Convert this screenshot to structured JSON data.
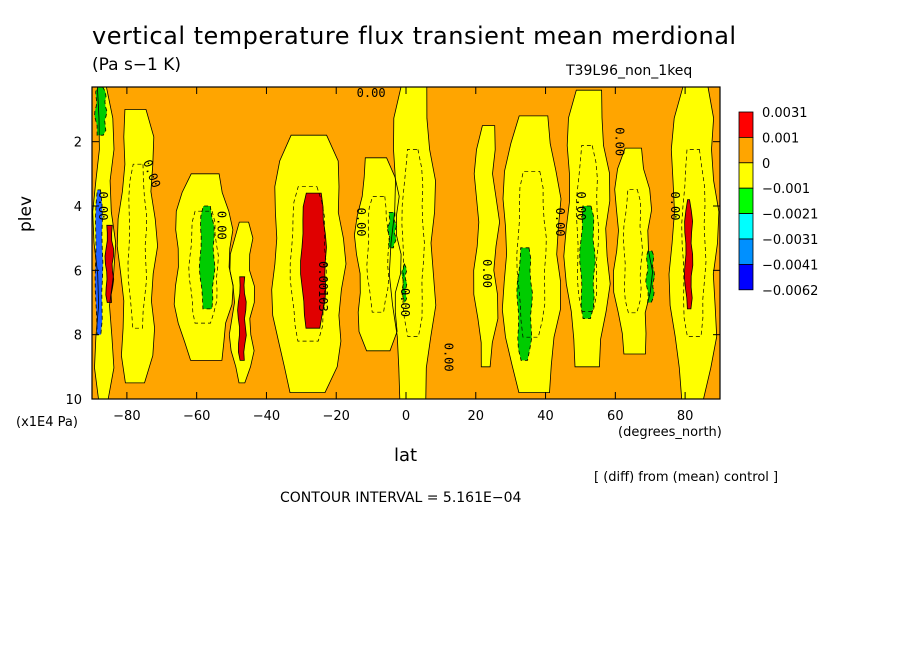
{
  "chart_data": {
    "type": "heatmap",
    "title": "vertical temperature flux transient mean merdional",
    "units": "(Pa s−1 K)",
    "run_label": "T39L96_non_1keq",
    "xlabel": "lat",
    "xunit": "(degrees_north)",
    "ylabel": "plev",
    "yunit": "(x1E4 Pa)",
    "xlim": [
      -90,
      90
    ],
    "ylim": [
      10,
      0.3
    ],
    "x_ticks": [
      -80,
      -60,
      -40,
      -20,
      0,
      20,
      40,
      60,
      80
    ],
    "x_tick_labels": [
      "−80",
      "−60",
      "−40",
      "−20",
      "0",
      "20",
      "40",
      "60",
      "80"
    ],
    "y_ticks": [
      2,
      4,
      6,
      8,
      10
    ],
    "y_tick_labels": [
      "2",
      "4",
      "6",
      "8",
      "10"
    ],
    "contour_interval_text": "CONTOUR INTERVAL = 5.161E−04",
    "note": "[ (diff) from (mean) control ]",
    "background_level": "0 to 0.001",
    "legend": [
      {
        "label": "0.0031",
        "color": "#ff0000"
      },
      {
        "label": "0.001",
        "color": "#ffa500"
      },
      {
        "label": "0",
        "color": "#ffff00"
      },
      {
        "label": "−0.001",
        "color": "#00ff00"
      },
      {
        "label": "−0.0021",
        "color": "#00ffff"
      },
      {
        "label": "−0.0031",
        "color": "#0090ff"
      },
      {
        "label": "−0.0041",
        "color": "#0000ff"
      },
      {
        "label": "−0.0062",
        "color": "#ffffff"
      }
    ],
    "color_levels": {
      "orange": "#ffa500",
      "yellow": "#ffff00",
      "green": "#00cc00",
      "red": "#e00000",
      "blue": "#2060ff"
    },
    "bands_yellow": [
      {
        "lat0": -89,
        "lat1": -84,
        "p0": 0.3,
        "p1": 10
      },
      {
        "lat0": -82,
        "lat1": -72,
        "p0": 1.0,
        "p1": 9.5
      },
      {
        "lat0": -66,
        "lat1": -50,
        "p0": 3.0,
        "p1": 8.8
      },
      {
        "lat0": -50,
        "lat1": -44,
        "p0": 4.5,
        "p1": 9.5
      },
      {
        "lat0": -38,
        "lat1": -18,
        "p0": 1.8,
        "p1": 9.8
      },
      {
        "lat0": -14,
        "lat1": -2,
        "p0": 2.5,
        "p1": 8.5
      },
      {
        "lat0": -4,
        "lat1": 8,
        "p0": 0.3,
        "p1": 10
      },
      {
        "lat0": 20,
        "lat1": 26,
        "p0": 1.5,
        "p1": 9.0
      },
      {
        "lat0": 28,
        "lat1": 44,
        "p0": 1.2,
        "p1": 9.8
      },
      {
        "lat0": 46,
        "lat1": 58,
        "p0": 0.4,
        "p1": 9.0
      },
      {
        "lat0": 60,
        "lat1": 70,
        "p0": 2.2,
        "p1": 8.6
      },
      {
        "lat0": 76,
        "lat1": 89,
        "p0": 0.3,
        "p1": 10
      }
    ],
    "bands_green": [
      {
        "lat0": -89,
        "lat1": -86,
        "p0": 0.3,
        "p1": 1.8
      },
      {
        "lat0": -59,
        "lat1": -55,
        "p0": 4.0,
        "p1": 7.2
      },
      {
        "lat0": -5,
        "lat1": -3,
        "p0": 4.2,
        "p1": 5.3
      },
      {
        "lat0": -1,
        "lat1": 0,
        "p0": 5.8,
        "p1": 7.0
      },
      {
        "lat0": 32,
        "lat1": 36,
        "p0": 5.3,
        "p1": 8.8
      },
      {
        "lat0": 50,
        "lat1": 54,
        "p0": 4.0,
        "p1": 7.5
      },
      {
        "lat0": 69,
        "lat1": 71,
        "p0": 5.4,
        "p1": 7.0
      }
    ],
    "bands_red": [
      {
        "lat0": -86,
        "lat1": -84,
        "p0": 4.6,
        "p1": 7.0
      },
      {
        "lat0": -48,
        "lat1": -46,
        "p0": 6.2,
        "p1": 8.8
      },
      {
        "lat0": -30,
        "lat1": -23,
        "p0": 3.6,
        "p1": 7.8
      },
      {
        "lat0": 80,
        "lat1": 82,
        "p0": 3.8,
        "p1": 7.2
      }
    ],
    "bands_blue": [
      {
        "lat0": -89,
        "lat1": -87,
        "p0": 3.5,
        "p1": 8.0
      }
    ],
    "contour_labels": [
      {
        "text": "0.00",
        "lat": -10,
        "p": 0.5,
        "angle": 0
      },
      {
        "text": "0.00",
        "lat": -73,
        "p": 3.0,
        "angle": 70
      },
      {
        "text": "0.00",
        "lat": -87,
        "p": 4.0,
        "angle": 90
      },
      {
        "text": "0.00",
        "lat": -53,
        "p": 4.6,
        "angle": 90
      },
      {
        "text": "0.00103",
        "lat": -24,
        "p": 6.5,
        "angle": 90
      },
      {
        "text": "0.00",
        "lat": -13,
        "p": 4.5,
        "angle": 90
      },
      {
        "text": "0.00",
        "lat": -0.5,
        "p": 7.0,
        "angle": 90
      },
      {
        "text": "0.00",
        "lat": 12,
        "p": 8.7,
        "angle": 90
      },
      {
        "text": "0.00",
        "lat": 23,
        "p": 6.1,
        "angle": 90
      },
      {
        "text": "0.00",
        "lat": 44,
        "p": 4.5,
        "angle": 90
      },
      {
        "text": "0.00",
        "lat": 50,
        "p": 4.0,
        "angle": 90
      },
      {
        "text": "0.00",
        "lat": 61,
        "p": 2.0,
        "angle": 90
      },
      {
        "text": "0.00",
        "lat": 77,
        "p": 4.0,
        "angle": 90
      }
    ]
  }
}
